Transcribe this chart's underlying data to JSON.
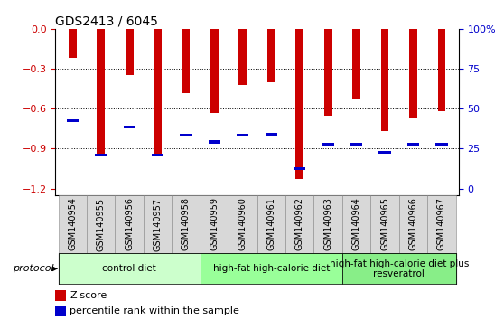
{
  "title": "GDS2413 / 6045",
  "samples": [
    "GSM140954",
    "GSM140955",
    "GSM140956",
    "GSM140957",
    "GSM140958",
    "GSM140959",
    "GSM140960",
    "GSM140961",
    "GSM140962",
    "GSM140963",
    "GSM140964",
    "GSM140965",
    "GSM140966",
    "GSM140967"
  ],
  "zscore": [
    -0.22,
    -0.96,
    -0.35,
    -0.96,
    -0.48,
    -0.63,
    -0.42,
    -0.4,
    -1.13,
    -0.65,
    -0.53,
    -0.77,
    -0.67,
    -0.62
  ],
  "percentile": [
    -0.69,
    -0.95,
    -0.74,
    -0.95,
    -0.8,
    -0.85,
    -0.8,
    -0.79,
    -1.05,
    -0.87,
    -0.87,
    -0.93,
    -0.87,
    -0.87
  ],
  "ylim": [
    -1.25,
    0.0
  ],
  "yticks_left": [
    0.0,
    -0.3,
    -0.6,
    -0.9,
    -1.2
  ],
  "yticks_right": [
    0.0,
    -0.3,
    -0.6,
    -0.9,
    -1.2
  ],
  "right_yticklabels": [
    "100%",
    "75",
    "50",
    "25",
    "0"
  ],
  "right_label_color": "#0000cc",
  "left_label_color": "#cc0000",
  "bar_color": "#cc0000",
  "marker_color": "#0000cc",
  "bg_color": "#ffffff",
  "xtick_bg_color": "#d8d8d8",
  "protocol_groups": [
    {
      "label": "control diet",
      "start": 0,
      "end": 4,
      "color": "#ccffcc"
    },
    {
      "label": "high-fat high-calorie diet",
      "start": 5,
      "end": 9,
      "color": "#99ff99"
    },
    {
      "label": "high-fat high-calorie diet plus\nresveratrol",
      "start": 10,
      "end": 13,
      "color": "#88ee88"
    }
  ],
  "legend_zscore_label": "Z-score",
  "legend_percentile_label": "percentile rank within the sample",
  "title_fontsize": 10,
  "tick_fontsize": 7,
  "protocol_fontsize": 7.5,
  "bar_width": 0.28
}
